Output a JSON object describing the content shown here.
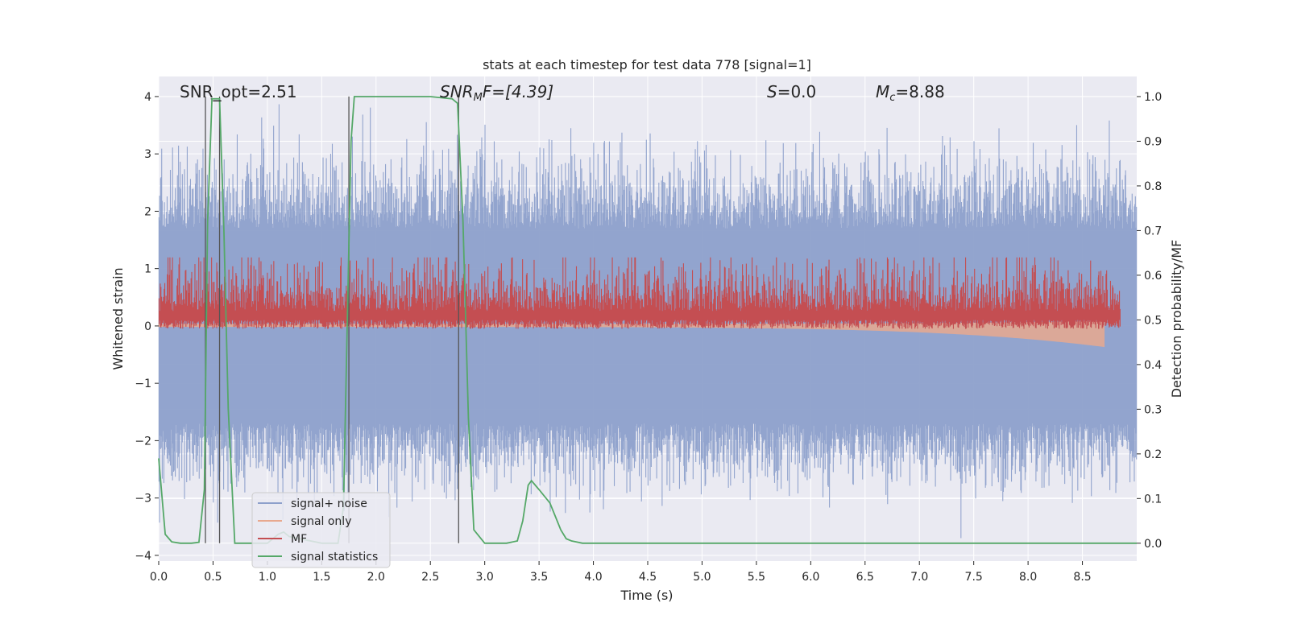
{
  "chart_data": {
    "type": "line",
    "title": "stats at each timestep for test data 778 [signal=1]",
    "xlabel": "Time (s)",
    "ylabel_left": "Whitened strain",
    "ylabel_right": "Detection probability/MF",
    "xlim": [
      0,
      9.0
    ],
    "ylim_left": [
      -4.1,
      4.35
    ],
    "ylim_right": [
      -0.04,
      1.045
    ],
    "x_ticks": [
      "0.0",
      "0.5",
      "1.0",
      "1.5",
      "2.0",
      "2.5",
      "3.0",
      "3.5",
      "4.0",
      "4.5",
      "5.0",
      "5.5",
      "6.0",
      "6.5",
      "7.0",
      "7.5",
      "8.0",
      "8.5"
    ],
    "y_ticks_left": [
      "4",
      "3",
      "2",
      "1",
      "0",
      "−1",
      "−2",
      "−3",
      "−4"
    ],
    "y_ticks_right": [
      "1.0",
      "0.9",
      "0.8",
      "0.7",
      "0.6",
      "0.5",
      "0.4",
      "0.3",
      "0.2",
      "0.1",
      "0.0"
    ],
    "grid": true,
    "legend_placement": "lower-left",
    "annotations": {
      "snr_opt": "SNR_opt=2.51",
      "snr_mf": "SNR",
      "snr_mf_sub": "M",
      "snr_mf_rest": "F=[4.39]",
      "s_var": "S",
      "s_val": "=0.0",
      "mc_var": "M",
      "mc_sub": "c",
      "mc_val": "=8.88"
    },
    "series": [
      {
        "name": "signal+ noise",
        "color": "#8da0cb",
        "noise_std": 1.0,
        "x_range": [
          0,
          9.0
        ]
      },
      {
        "name": "signal only",
        "color": "#e8a98f",
        "chirp_end": 8.7,
        "peak_amplitude": -0.35
      },
      {
        "name": "MF",
        "color": "#c44e52",
        "baseline": 0.52,
        "spread": [
          0.48,
          0.64
        ],
        "peak": 0.6
      },
      {
        "name": "signal statistics",
        "color": "#55a868",
        "x": [
          0.0,
          0.06,
          0.12,
          0.2,
          0.3,
          0.37,
          0.42,
          0.45,
          0.49,
          0.52,
          0.56,
          0.6,
          0.64,
          0.7,
          0.8,
          1.0,
          1.1,
          1.15,
          1.2,
          1.5,
          1.65,
          1.7,
          1.74,
          1.77,
          1.8,
          1.9,
          2.5,
          2.7,
          2.75,
          2.8,
          2.85,
          2.9,
          3.0,
          3.1,
          3.2,
          3.3,
          3.35,
          3.4,
          3.43,
          3.5,
          3.6,
          3.65,
          3.7,
          3.75,
          3.8,
          3.9,
          4.5,
          9.0
        ],
        "y": [
          0.19,
          0.02,
          0.003,
          0.0,
          0.0,
          0.002,
          0.12,
          0.72,
          0.995,
          0.995,
          0.995,
          0.7,
          0.3,
          0.0,
          0.0,
          0.0,
          0.02,
          0.025,
          0.015,
          0.0,
          0.0,
          0.08,
          0.55,
          0.9,
          1.0,
          1.0,
          1.0,
          0.995,
          0.985,
          0.72,
          0.28,
          0.03,
          0.0,
          0.0,
          0.0,
          0.005,
          0.05,
          0.13,
          0.14,
          0.12,
          0.09,
          0.06,
          0.03,
          0.01,
          0.005,
          0.0,
          0.0,
          0.0
        ]
      }
    ],
    "vertical_lines": [
      {
        "x": 0.43,
        "y_top": 4.0
      },
      {
        "x": 0.56,
        "y_top": 4.0
      },
      {
        "x": 1.75,
        "y_top": 4.0
      },
      {
        "x": 2.76,
        "y_top": 4.0
      }
    ]
  }
}
